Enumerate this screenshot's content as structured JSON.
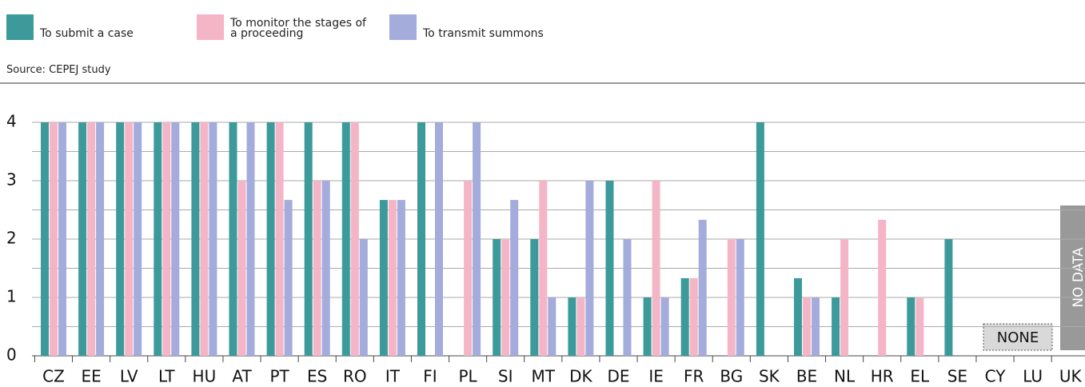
{
  "chart_data": {
    "type": "bar",
    "source": "Source: CEPEJ study",
    "categories": [
      "CZ",
      "EE",
      "LV",
      "LT",
      "HU",
      "AT",
      "PT",
      "ES",
      "RO",
      "IT",
      "FI",
      "PL",
      "SI",
      "MT",
      "DK",
      "DE",
      "IE",
      "FR",
      "BG",
      "SK",
      "BE",
      "NL",
      "HR",
      "EL",
      "SE",
      "CY",
      "LU",
      "UK"
    ],
    "series": [
      {
        "name": "To submit a case",
        "color": "#3d9a9b",
        "values": [
          4,
          4,
          4,
          4,
          4,
          4,
          4,
          4,
          4,
          2.67,
          4,
          0,
          2,
          2,
          1,
          3,
          1,
          1.33,
          0,
          4,
          1.33,
          1,
          0,
          1,
          2,
          0,
          0,
          0
        ]
      },
      {
        "name": "To monitor the stages of a proceeding",
        "color": "#f4b6c7",
        "values": [
          4,
          4,
          4,
          4,
          4,
          3,
          4,
          3,
          4,
          2.67,
          0,
          3,
          2,
          3,
          1,
          0,
          3,
          1.33,
          2,
          0,
          1,
          2,
          2.33,
          1,
          0,
          0,
          0,
          0
        ]
      },
      {
        "name": "To transmit summons",
        "color": "#a3acdb",
        "values": [
          4,
          4,
          4,
          4,
          4,
          4,
          2.67,
          3,
          2,
          2.67,
          4,
          4,
          2.67,
          1,
          3,
          2,
          1,
          2.33,
          2,
          0,
          1,
          0,
          0,
          0,
          0,
          0,
          0,
          0
        ]
      }
    ],
    "ylim": [
      0,
      4
    ],
    "yticks": [
      0,
      1,
      2,
      3,
      4
    ],
    "minor_yticks": [
      0.5,
      1.5,
      2.5,
      3.5
    ],
    "grid": true,
    "annotations": [
      "NONE",
      "NO DATA"
    ]
  }
}
